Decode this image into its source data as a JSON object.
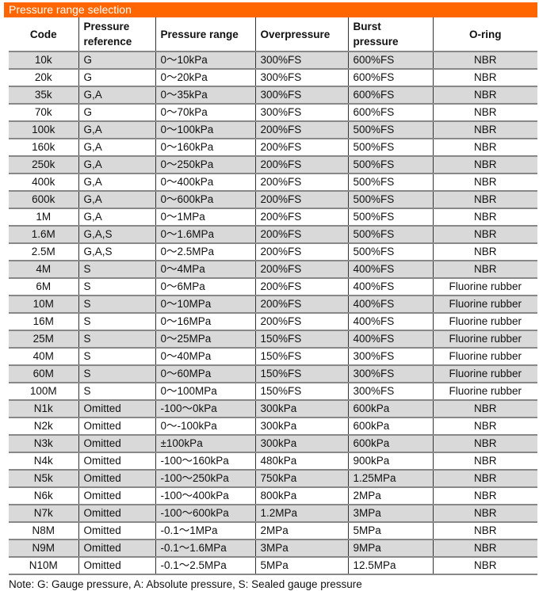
{
  "title": "Pressure range selection",
  "headers": [
    "Code",
    "Pressure reference",
    "Pressure range",
    "Overpressure",
    "Burst pressure",
    "O-ring"
  ],
  "rows": [
    [
      "10k",
      "G",
      "0～10kPa",
      "300%FS",
      "600%FS",
      "NBR"
    ],
    [
      "20k",
      "G",
      "0～20kPa",
      "300%FS",
      "600%FS",
      "NBR"
    ],
    [
      "35k",
      "G,A",
      "0～35kPa",
      "300%FS",
      "600%FS",
      "NBR"
    ],
    [
      "70k",
      "G",
      "0～70kPa",
      "300%FS",
      "600%FS",
      "NBR"
    ],
    [
      "100k",
      "G,A",
      "0～100kPa",
      "200%FS",
      "500%FS",
      "NBR"
    ],
    [
      "160k",
      "G,A",
      "0～160kPa",
      "200%FS",
      "500%FS",
      "NBR"
    ],
    [
      "250k",
      "G,A",
      "0～250kPa",
      "200%FS",
      "500%FS",
      "NBR"
    ],
    [
      "400k",
      "G,A",
      "0～400kPa",
      "200%FS",
      "500%FS",
      "NBR"
    ],
    [
      "600k",
      "G,A",
      "0～600kPa",
      "200%FS",
      "500%FS",
      "NBR"
    ],
    [
      "1M",
      "G,A",
      "0～1MPa",
      "200%FS",
      "500%FS",
      "NBR"
    ],
    [
      "1.6M",
      "G,A,S",
      "0～1.6MPa",
      "200%FS",
      "500%FS",
      "NBR"
    ],
    [
      "2.5M",
      "G,A,S",
      "0～2.5MPa",
      "200%FS",
      "500%FS",
      "NBR"
    ],
    [
      "4M",
      "S",
      "0～4MPa",
      "200%FS",
      "400%FS",
      "NBR"
    ],
    [
      "6M",
      "S",
      "0～6MPa",
      "200%FS",
      "400%FS",
      "Fluorine rubber"
    ],
    [
      "10M",
      "S",
      "0～10MPa",
      "200%FS",
      "400%FS",
      "Fluorine rubber"
    ],
    [
      "16M",
      "S",
      "0～16MPa",
      "200%FS",
      "400%FS",
      "Fluorine rubber"
    ],
    [
      "25M",
      "S",
      "0～25MPa",
      "150%FS",
      "400%FS",
      "Fluorine rubber"
    ],
    [
      "40M",
      "S",
      "0～40MPa",
      "150%FS",
      "300%FS",
      "Fluorine rubber"
    ],
    [
      "60M",
      "S",
      "0～60MPa",
      "150%FS",
      "300%FS",
      "Fluorine rubber"
    ],
    [
      "100M",
      "S",
      "0～100MPa",
      "150%FS",
      "300%FS",
      "Fluorine rubber"
    ],
    [
      "N1k",
      "Omitted",
      "-100～0kPa",
      "300kPa",
      "600kPa",
      "NBR"
    ],
    [
      "N2k",
      "Omitted",
      "0～-100kPa",
      "300kPa",
      "600kPa",
      "NBR"
    ],
    [
      "N3k",
      "Omitted",
      "±100kPa",
      "300kPa",
      "600kPa",
      "NBR"
    ],
    [
      "N4k",
      "Omitted",
      "-100～160kPa",
      "480kPa",
      "900kPa",
      "NBR"
    ],
    [
      "N5k",
      "Omitted",
      "-100～250kPa",
      "750kPa",
      "1.25MPa",
      "NBR"
    ],
    [
      "N6k",
      "Omitted",
      "-100～400kPa",
      "800kPa",
      "2MPa",
      "NBR"
    ],
    [
      "N7k",
      "Omitted",
      "-100～600kPa",
      "1.2MPa",
      "3MPa",
      "NBR"
    ],
    [
      "N8M",
      "Omitted",
      "-0.1～1MPa",
      "2MPa",
      "5MPa",
      "NBR"
    ],
    [
      "N9M",
      "Omitted",
      "-0.1～1.6MPa",
      "3MPa",
      "9MPa",
      "NBR"
    ],
    [
      "N10M",
      "Omitted",
      "-0.1～2.5MPa",
      "5MPa",
      "12.5MPa",
      "NBR"
    ]
  ],
  "note": "Note: G: Gauge pressure, A: Absolute pressure, S: Sealed gauge pressure",
  "colors": {
    "title_bar": "#ff6600",
    "row_shade": "#d9d9d9"
  }
}
